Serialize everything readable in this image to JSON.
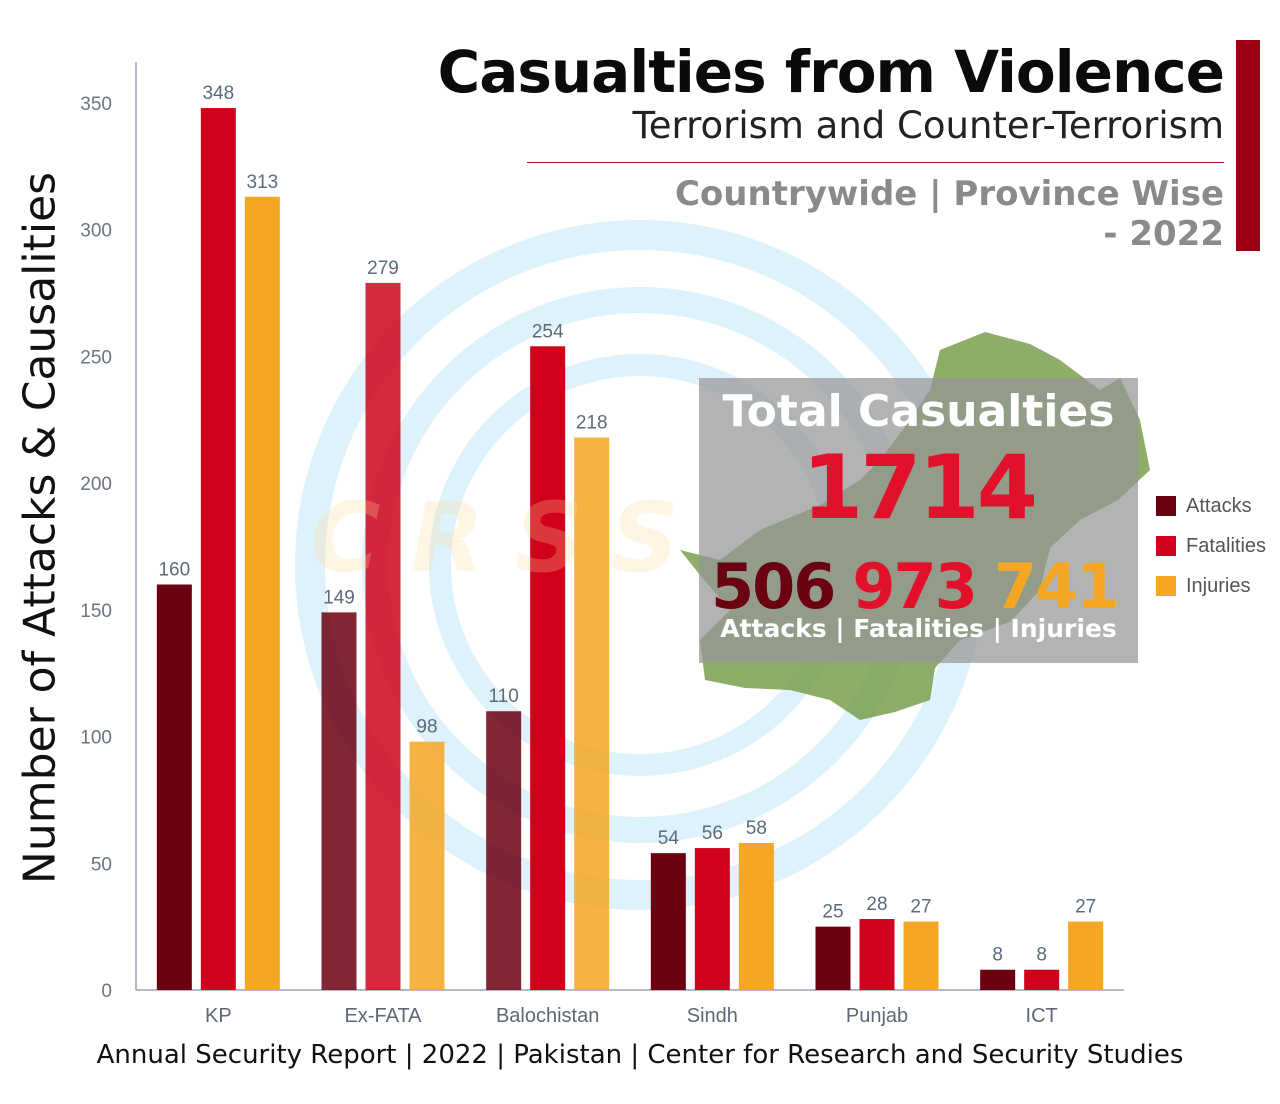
{
  "header": {
    "title": "Casualties from Violence",
    "subtitle": "Terrorism and Counter-Terrorism",
    "scope_line1": "Countrywide | Province Wise",
    "scope_line2": "- 2022"
  },
  "watermark": "CRSS",
  "totals": {
    "title": "Total Casualties",
    "total": "1714",
    "attacks": "506",
    "fatalities": "973",
    "injuries": "741",
    "caption": "Attacks | Fatalities | Injuries"
  },
  "footer": "Annual Security Report | 2022 | Pakistan | Center for Research and Security Studies",
  "colors": {
    "attacks": "#6b0011",
    "fatalities": "#d0021b",
    "injuries": "#f5a623",
    "accent_bar": "#9b0012",
    "map_green": "#7a9f4e"
  },
  "chart_data": {
    "type": "bar",
    "ylabel": "Number of Attacks & Causalities",
    "xlabel": "",
    "ylim": [
      0,
      350
    ],
    "yticks": [
      0,
      50,
      100,
      150,
      200,
      250,
      300,
      350
    ],
    "categories": [
      "KP",
      "Ex-FATA",
      "Balochistan",
      "Sindh",
      "Punjab",
      "ICT"
    ],
    "series": [
      {
        "name": "Attacks",
        "color": "#6b0011",
        "values": [
          160,
          149,
          110,
          54,
          25,
          8
        ]
      },
      {
        "name": "Fatalities",
        "color": "#d0021b",
        "values": [
          348,
          279,
          254,
          56,
          28,
          8
        ]
      },
      {
        "name": "Injuries",
        "color": "#f5a623",
        "values": [
          313,
          98,
          218,
          58,
          27,
          27
        ]
      }
    ],
    "legend_position": "right"
  }
}
